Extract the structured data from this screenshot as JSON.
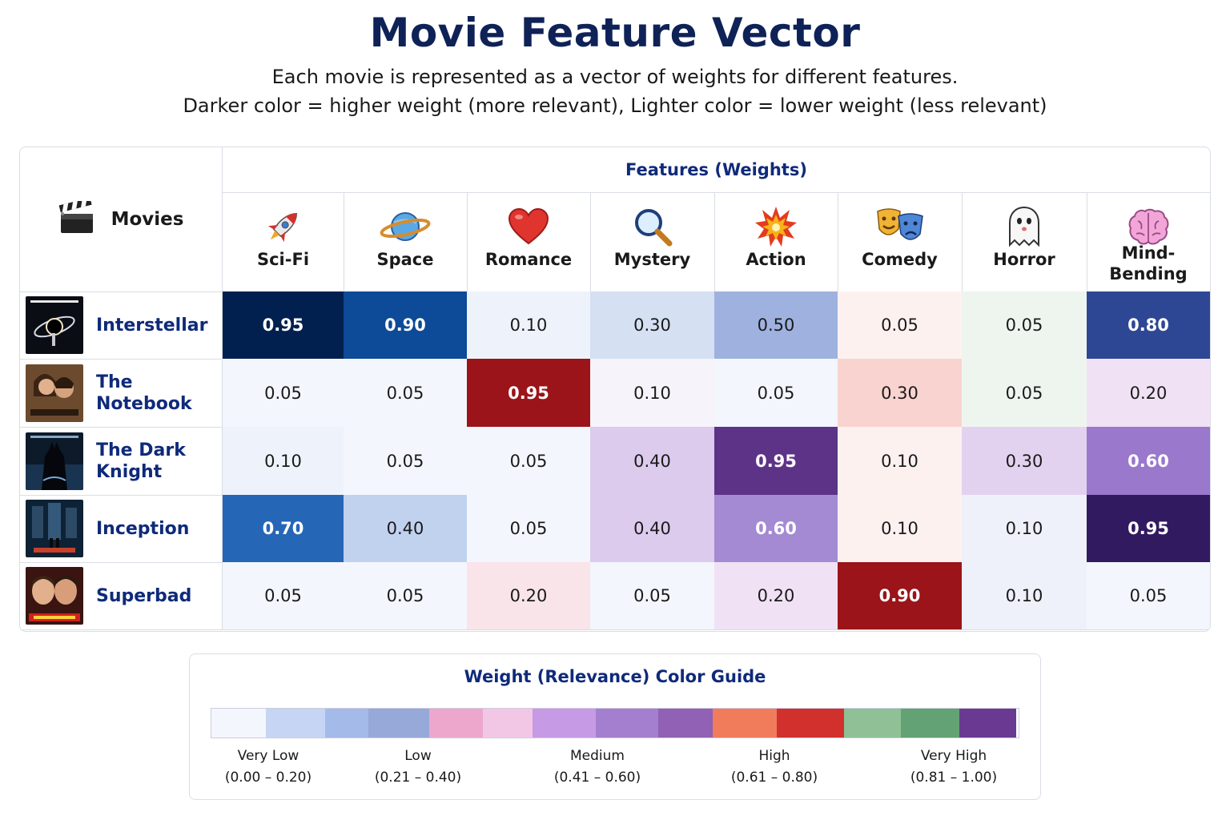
{
  "title": "Movie Feature Vector",
  "subtitle_line1": "Each movie is represented as a vector of weights for different features.",
  "subtitle_line2": "Darker color = higher weight (more relevant), Lighter color = lower weight (less relevant)",
  "table": {
    "movies_header": "Movies",
    "movies_header_icon": "clapperboard-icon",
    "features_header": "Features (Weights)"
  },
  "chart_data": {
    "type": "heatmap",
    "title": "Movie Feature Vector",
    "x_labels": [
      "Sci-Fi",
      "Space",
      "Romance",
      "Mystery",
      "Action",
      "Comedy",
      "Horror",
      "Mind-Bending"
    ],
    "x_icons": [
      "rocket-icon",
      "planet-icon",
      "heart-icon",
      "magnifier-icon",
      "explosion-icon",
      "theater-masks-icon",
      "ghost-icon",
      "brain-icon"
    ],
    "y_labels": [
      "Interstellar",
      "The Notebook",
      "The Dark Knight",
      "Inception",
      "Superbad"
    ],
    "values": [
      [
        0.95,
        0.9,
        0.1,
        0.3,
        0.5,
        0.05,
        0.05,
        0.8
      ],
      [
        0.05,
        0.05,
        0.95,
        0.1,
        0.05,
        0.3,
        0.05,
        0.2
      ],
      [
        0.1,
        0.05,
        0.05,
        0.4,
        0.95,
        0.1,
        0.3,
        0.6
      ],
      [
        0.7,
        0.4,
        0.05,
        0.4,
        0.6,
        0.1,
        0.1,
        0.95
      ],
      [
        0.05,
        0.05,
        0.2,
        0.05,
        0.2,
        0.9,
        0.1,
        0.05
      ]
    ],
    "value_labels": [
      [
        "0.95",
        "0.90",
        "0.10",
        "0.30",
        "0.50",
        "0.05",
        "0.05",
        "0.80"
      ],
      [
        "0.05",
        "0.05",
        "0.95",
        "0.10",
        "0.05",
        "0.30",
        "0.05",
        "0.20"
      ],
      [
        "0.10",
        "0.05",
        "0.05",
        "0.40",
        "0.95",
        "0.10",
        "0.30",
        "0.60"
      ],
      [
        "0.70",
        "0.40",
        "0.05",
        "0.40",
        "0.60",
        "0.10",
        "0.10",
        "0.95"
      ],
      [
        "0.05",
        "0.05",
        "0.20",
        "0.05",
        "0.20",
        "0.90",
        "0.10",
        "0.05"
      ]
    ],
    "cell_colors": [
      [
        "#02204f",
        "#0d4a97",
        "#eef3fb",
        "#d5e0f2",
        "#9fb1df",
        "#fdf1f0",
        "#eef5ef",
        "#2e4794"
      ],
      [
        "#f3f6fc",
        "#f3f6fc",
        "#9a1419",
        "#f7f3fa",
        "#f3f6fc",
        "#f8d3cf",
        "#eef5ef",
        "#f0e2f4"
      ],
      [
        "#eef3fb",
        "#f3f6fc",
        "#f3f6fc",
        "#dccbed",
        "#5d3388",
        "#fdf1f0",
        "#e3d2ef",
        "#9a78cc"
      ],
      [
        "#2566b7",
        "#c1d2ef",
        "#f3f6fc",
        "#dccbed",
        "#a48ad2",
        "#fdf1f0",
        "#eef1f9",
        "#321a60"
      ],
      [
        "#f3f6fc",
        "#f3f6fc",
        "#f9e4ea",
        "#f3f6fc",
        "#f0e2f4",
        "#9a1419",
        "#eef1f9",
        "#f3f6fc"
      ]
    ],
    "light_text_cells": [
      [
        0,
        0
      ],
      [
        0,
        1
      ],
      [
        0,
        7
      ],
      [
        1,
        2
      ],
      [
        2,
        4
      ],
      [
        2,
        7
      ],
      [
        3,
        0
      ],
      [
        3,
        4
      ],
      [
        3,
        7
      ],
      [
        4,
        5
      ]
    ]
  },
  "legend": {
    "title": "Weight (Relevance) Color Guide",
    "swatch_colors": [
      "#f3f6fd",
      "#c6d5f3",
      "#a4bbea",
      "#96a9d9",
      "#eda7cd",
      "#f2c7e6",
      "#c79ae6",
      "#a47fd0",
      "#9061b4",
      "#f07c5c",
      "#d1302d",
      "#8fc096",
      "#63a274",
      "#6a3a92"
    ],
    "ticks": [
      {
        "label": "Very Low",
        "range": "(0.00 – 0.20)"
      },
      {
        "label": "Low",
        "range": "(0.21 – 0.40)"
      },
      {
        "label": "Medium",
        "range": "(0.41 – 0.60)"
      },
      {
        "label": "High",
        "range": "(0.61 – 0.80)"
      },
      {
        "label": "Very High",
        "range": "(0.81 – 1.00)"
      }
    ]
  }
}
